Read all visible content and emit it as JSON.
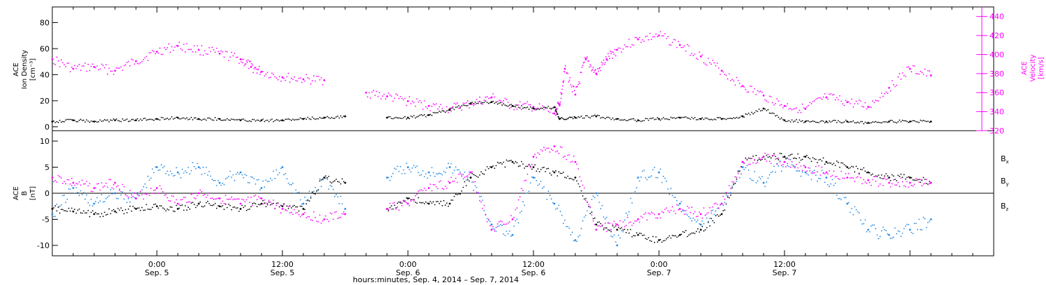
{
  "chart_data": [
    {
      "type": "scatter",
      "panel": "top",
      "ylabel_left": [
        "ACE",
        "Ion Density",
        "[cm⁻³]"
      ],
      "ylabel_right": [
        "ACE",
        "Velocity",
        "[km/s]"
      ],
      "ylim_left": [
        -3,
        92
      ],
      "yticks_left": [
        "0",
        "20",
        "40",
        "60",
        "80"
      ],
      "ylim_right": [
        320,
        450
      ],
      "yticks_right": [
        "320",
        "340",
        "360",
        "380",
        "400",
        "420",
        "440"
      ],
      "xlim_hours": [
        -10,
        80
      ],
      "series": [
        {
          "color": "#000000",
          "axis": "left",
          "x": [
            -10,
            -8,
            -6,
            -4,
            -2,
            0,
            2,
            4,
            6,
            8,
            10,
            12,
            14,
            16,
            18,
            20,
            22,
            24,
            26,
            28,
            30,
            32,
            34,
            36,
            38,
            38.5,
            40,
            42,
            44,
            46,
            48,
            50,
            52,
            54,
            56,
            58,
            60,
            62,
            64,
            66,
            68,
            70,
            72,
            74
          ],
          "y": [
            4,
            5,
            4,
            5,
            5,
            6,
            7,
            6,
            6,
            5,
            5,
            5,
            6,
            7,
            8,
            null,
            7,
            7,
            9,
            13,
            18,
            19,
            16,
            14,
            15,
            6,
            7,
            8,
            6,
            5,
            6,
            7,
            6,
            6,
            8,
            14,
            5,
            4,
            4,
            4,
            3,
            4,
            4,
            4
          ]
        },
        {
          "color": "#ff00ff",
          "axis": "right",
          "x": [
            -10,
            -8,
            -6,
            -4,
            -2,
            0,
            2,
            4,
            6,
            8,
            9,
            10,
            12,
            14,
            16,
            18,
            20,
            22,
            24,
            26,
            28,
            30,
            32,
            34,
            36,
            38,
            38.5,
            39,
            40,
            41,
            42,
            43,
            44,
            46,
            48,
            50,
            52,
            54,
            56,
            58,
            60,
            62,
            64,
            66,
            68,
            70,
            72,
            74
          ],
          "y": [
            395,
            385,
            387,
            383,
            393,
            403,
            409,
            405,
            401,
            395,
            387,
            382,
            376,
            374,
            373,
            null,
            360,
            356,
            351,
            346,
            343,
            348,
            355,
            346,
            345,
            338,
            348,
            385,
            358,
            395,
            380,
            395,
            405,
            416,
            420,
            410,
            398,
            383,
            367,
            357,
            346,
            343,
            355,
            350,
            345,
            365,
            385,
            378
          ]
        }
      ]
    },
    {
      "type": "scatter",
      "panel": "bottom",
      "ylabel_left": [
        "ACE",
        "B",
        "[nT]"
      ],
      "ylim": [
        -12,
        12
      ],
      "yticks": [
        "-10",
        "-5",
        "0",
        "5",
        "10"
      ],
      "xlim_hours": [
        -10,
        80
      ],
      "xticks": [
        {
          "hours": 0,
          "time": "0:00",
          "date": "Sep. 5"
        },
        {
          "hours": 12,
          "time": "12:00",
          "date": "Sep. 5"
        },
        {
          "hours": 24,
          "time": "0:00",
          "date": "Sep. 6"
        },
        {
          "hours": 36,
          "time": "12:00",
          "date": "Sep. 6"
        },
        {
          "hours": 48,
          "time": "0:00",
          "date": "Sep. 7"
        },
        {
          "hours": 60,
          "time": "12:00",
          "date": "Sep. 7"
        }
      ],
      "xlabel": "hours:minutes, Sep.  4, 2014 – Sep.  7, 2014",
      "series": [
        {
          "name": "Bx",
          "color": "#000000",
          "x": [
            -10,
            -8,
            -6,
            -4,
            -2,
            0,
            2,
            4,
            6,
            8,
            10,
            12,
            14,
            16,
            18,
            20,
            22,
            24,
            26,
            28,
            30,
            32,
            34,
            36,
            38,
            40,
            42,
            44,
            46,
            48,
            50,
            52,
            54,
            56,
            58,
            60,
            62,
            64,
            66,
            68,
            70,
            72,
            74
          ],
          "y": [
            -3,
            -3.5,
            -4,
            -3.5,
            -3,
            -2.5,
            -3,
            -2,
            -2.5,
            -3,
            -2,
            -2.5,
            -3,
            3,
            2,
            null,
            -3,
            -1,
            -2,
            -2,
            3,
            5,
            6,
            5,
            4,
            3,
            -6,
            -7,
            -8,
            -9,
            -8,
            -7,
            -4,
            6,
            7,
            7,
            7,
            6,
            5,
            4,
            3,
            3,
            2
          ]
        },
        {
          "name": "By",
          "color": "#1e88e5",
          "x": [
            -10,
            -8,
            -6,
            -4,
            -2,
            0,
            2,
            4,
            6,
            8,
            10,
            12,
            14,
            16,
            18,
            20,
            22,
            24,
            26,
            28,
            30,
            32,
            34,
            36,
            38,
            40,
            42,
            44,
            46,
            48,
            50,
            52,
            54,
            56,
            58,
            60,
            62,
            64,
            66,
            68,
            70,
            72,
            74
          ],
          "y": [
            -4,
            1,
            -2,
            0,
            -1,
            5,
            4,
            5,
            2,
            4,
            1,
            5,
            -2,
            3,
            -3,
            null,
            3,
            5,
            4,
            5,
            3,
            -6,
            -8,
            3,
            -2,
            -9,
            0,
            -10,
            3,
            4,
            -2,
            -6,
            -2,
            5,
            2,
            6,
            4,
            3,
            -2,
            -7,
            -8,
            -7,
            -5
          ]
        },
        {
          "name": "Bz",
          "color": "#ff00ff",
          "x": [
            -10,
            -8,
            -6,
            -4,
            -2,
            0,
            2,
            4,
            6,
            8,
            10,
            12,
            14,
            16,
            18,
            20,
            22,
            24,
            26,
            28,
            30,
            32,
            34,
            36,
            38,
            40,
            42,
            44,
            46,
            48,
            50,
            52,
            54,
            56,
            58,
            60,
            62,
            64,
            66,
            68,
            70,
            72,
            74
          ],
          "y": [
            3,
            2,
            1,
            2,
            -1,
            1,
            -2,
            0,
            -1,
            -2,
            -1,
            -3,
            -4,
            -5,
            -4,
            null,
            -3,
            -2,
            1,
            2,
            4,
            -7,
            -5,
            7,
            9,
            6,
            -7,
            -6,
            -5,
            -4,
            -3,
            -4,
            -2,
            6,
            7,
            6,
            5,
            4,
            3,
            2.5,
            2,
            2,
            2
          ]
        }
      ],
      "legend": [
        "B",
        "B",
        "B"
      ],
      "legend_sub": [
        "x",
        "y",
        "z"
      ]
    }
  ]
}
